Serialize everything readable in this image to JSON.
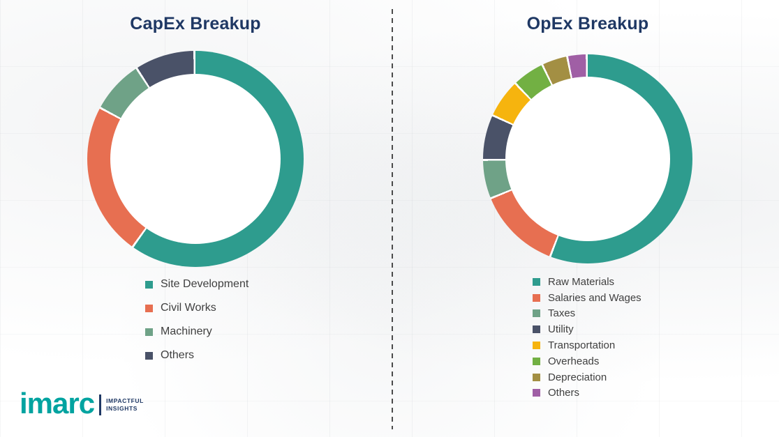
{
  "page": {
    "background_color": "#ffffff",
    "title_color": "#1F3864"
  },
  "chart_data": [
    {
      "type": "pie",
      "variant": "donut",
      "title": "CapEx Breakup",
      "legend_position": "below-left",
      "start_angle_deg": 0,
      "direction": "clockwise",
      "slices": [
        {
          "label": "Site Development",
          "value": 60,
          "color": "#2E9C8E"
        },
        {
          "label": "Civil Works",
          "value": 23,
          "color": "#E76F51"
        },
        {
          "label": "Machinery",
          "value": 8,
          "color": "#6FA287"
        },
        {
          "label": "Others",
          "value": 9,
          "color": "#4A5268"
        }
      ]
    },
    {
      "type": "pie",
      "variant": "donut",
      "title": "OpEx Breakup",
      "legend_position": "below-left",
      "start_angle_deg": 0,
      "direction": "clockwise",
      "slices": [
        {
          "label": "Raw Materials",
          "value": 56,
          "color": "#2E9C8E"
        },
        {
          "label": "Salaries and Wages",
          "value": 13,
          "color": "#E76F51"
        },
        {
          "label": "Taxes",
          "value": 6,
          "color": "#6FA287"
        },
        {
          "label": "Utility",
          "value": 7,
          "color": "#4A5268"
        },
        {
          "label": "Transportation",
          "value": 6,
          "color": "#F6B40E"
        },
        {
          "label": "Overheads",
          "value": 5,
          "color": "#72B043"
        },
        {
          "label": "Depreciation",
          "value": 4,
          "color": "#A38F43"
        },
        {
          "label": "Others",
          "value": 3,
          "color": "#A05FA5"
        }
      ]
    }
  ],
  "logo": {
    "brand": "imarc",
    "brand_color": "#00A3A0",
    "tagline": [
      "IMPACTFUL",
      "INSIGHTS"
    ],
    "tagline_color": "#1F3864"
  }
}
